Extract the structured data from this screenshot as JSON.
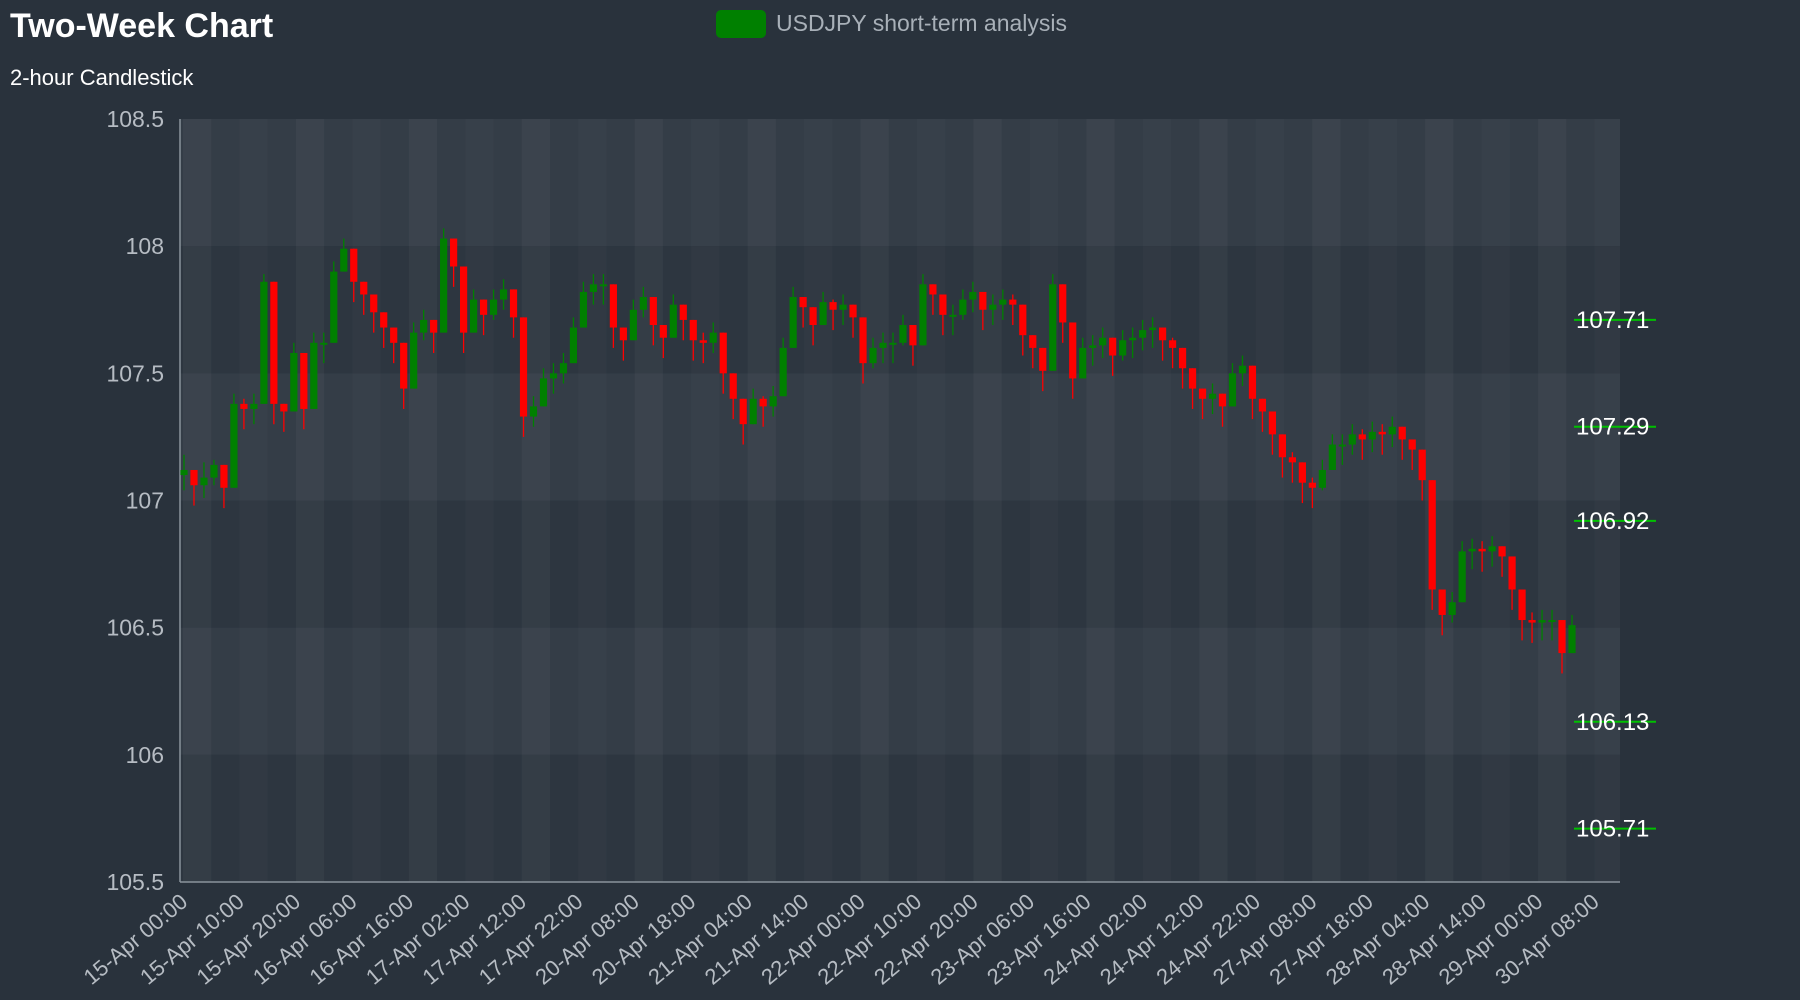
{
  "chart_data": {
    "type": "candlestick",
    "title": "Two-Week Chart",
    "subtitle": "2-hour Candlestick",
    "legend": {
      "label": "USDJPY short-term analysis",
      "color": "#008000",
      "placement": "top-center"
    },
    "colors": {
      "up": "#008000",
      "down": "#ff0000",
      "level_line": "#00c000",
      "background": "#29323c"
    },
    "ylim": [
      105.5,
      108.5
    ],
    "yticks": [
      "108.5",
      "108",
      "107.5",
      "107",
      "106.5",
      "106",
      "105.5"
    ],
    "xtick_labels": [
      "15-Apr 00:00",
      "15-Apr 10:00",
      "15-Apr 20:00",
      "16-Apr 06:00",
      "16-Apr 16:00",
      "17-Apr 02:00",
      "17-Apr 12:00",
      "17-Apr 22:00",
      "20-Apr 08:00",
      "20-Apr 18:00",
      "21-Apr 04:00",
      "21-Apr 14:00",
      "22-Apr 00:00",
      "22-Apr 10:00",
      "22-Apr 20:00",
      "23-Apr 06:00",
      "23-Apr 16:00",
      "24-Apr 02:00",
      "24-Apr 12:00",
      "24-Apr 22:00",
      "27-Apr 08:00",
      "27-Apr 18:00",
      "28-Apr 04:00",
      "28-Apr 14:00",
      "29-Apr 00:00",
      "30-Apr 08:00"
    ],
    "levels": [
      107.71,
      107.29,
      106.92,
      106.13,
      105.71
    ],
    "level_labels": [
      "107.71",
      "107.29",
      "106.92",
      "106.13",
      "105.71"
    ],
    "grid": true,
    "candle_close": [
      107.12,
      107.06,
      107.09,
      107.14,
      107.05,
      107.38,
      107.36,
      107.38,
      107.86,
      107.38,
      107.35,
      107.58,
      107.36,
      107.62,
      107.62,
      107.9,
      107.99,
      107.86,
      107.81,
      107.74,
      107.68,
      107.62,
      107.44,
      107.66,
      107.71,
      107.66,
      108.03,
      107.92,
      107.66,
      107.79,
      107.73,
      107.79,
      107.83,
      107.72,
      107.33,
      107.37,
      107.48,
      107.5,
      107.54,
      107.68,
      107.82,
      107.85,
      107.85,
      107.68,
      107.63,
      107.75,
      107.8,
      107.69,
      107.64,
      107.77,
      107.71,
      107.63,
      107.62,
      107.66,
      107.5,
      107.4,
      107.3,
      107.4,
      107.37,
      107.41,
      107.6,
      107.8,
      107.76,
      107.69,
      107.78,
      107.75,
      107.77,
      107.72,
      107.54,
      107.6,
      107.62,
      107.62,
      107.69,
      107.61,
      107.85,
      107.81,
      107.73,
      107.73,
      107.79,
      107.82,
      107.75,
      107.77,
      107.79,
      107.77,
      107.65,
      107.6,
      107.51,
      107.85,
      107.7,
      107.48,
      107.6,
      107.61,
      107.64,
      107.57,
      107.63,
      107.64,
      107.67,
      107.68,
      107.63,
      107.6,
      107.52,
      107.44,
      107.4,
      107.42,
      107.37,
      107.5,
      107.53,
      107.4,
      107.35,
      107.26,
      107.17,
      107.15,
      107.07,
      107.05,
      107.12,
      107.22,
      107.22,
      107.26,
      107.24,
      107.27,
      107.26,
      107.29,
      107.24,
      107.2,
      107.08,
      106.65,
      106.55,
      106.6,
      106.8,
      106.81,
      106.8,
      106.82,
      106.78,
      106.65,
      106.53,
      106.52,
      106.53,
      106.53,
      106.4,
      106.51
    ],
    "candle_high": [
      107.18,
      107.1,
      107.15,
      107.16,
      107.09,
      107.42,
      107.4,
      107.42,
      107.89,
      107.4,
      107.38,
      107.62,
      107.4,
      107.66,
      107.66,
      107.94,
      108.03,
      107.9,
      107.85,
      107.78,
      107.72,
      107.66,
      107.48,
      107.7,
      107.75,
      107.7,
      108.07,
      107.96,
      107.7,
      107.83,
      107.77,
      107.83,
      107.87,
      107.76,
      107.37,
      107.41,
      107.52,
      107.54,
      107.58,
      107.72,
      107.86,
      107.89,
      107.89,
      107.72,
      107.67,
      107.79,
      107.84,
      107.73,
      107.68,
      107.81,
      107.75,
      107.67,
      107.66,
      107.7,
      107.54,
      107.44,
      107.34,
      107.44,
      107.41,
      107.45,
      107.64,
      107.84,
      107.8,
      107.73,
      107.82,
      107.79,
      107.81,
      107.76,
      107.58,
      107.64,
      107.66,
      107.66,
      107.73,
      107.65,
      107.89,
      107.85,
      107.77,
      107.77,
      107.83,
      107.86,
      107.79,
      107.81,
      107.83,
      107.81,
      107.69,
      107.64,
      107.55,
      107.89,
      107.74,
      107.52,
      107.64,
      107.65,
      107.68,
      107.61,
      107.67,
      107.68,
      107.71,
      107.72,
      107.67,
      107.64,
      107.56,
      107.48,
      107.44,
      107.46,
      107.41,
      107.54,
      107.57,
      107.44,
      107.39,
      107.3,
      107.21,
      107.19,
      107.11,
      107.09,
      107.16,
      107.26,
      107.26,
      107.3,
      107.28,
      107.31,
      107.3,
      107.33,
      107.28,
      107.24,
      107.12,
      106.69,
      106.59,
      106.64,
      106.84,
      106.85,
      106.84,
      106.86,
      106.82,
      106.69,
      106.57,
      106.56,
      106.57,
      106.57,
      106.44,
      106.55
    ],
    "candle_low": [
      107.04,
      106.98,
      107.01,
      107.06,
      106.97,
      107.3,
      107.28,
      107.3,
      107.78,
      107.3,
      107.27,
      107.5,
      107.28,
      107.54,
      107.54,
      107.82,
      107.91,
      107.78,
      107.73,
      107.66,
      107.6,
      107.54,
      107.36,
      107.58,
      107.63,
      107.58,
      107.95,
      107.84,
      107.58,
      107.71,
      107.65,
      107.71,
      107.75,
      107.64,
      107.25,
      107.29,
      107.4,
      107.42,
      107.46,
      107.6,
      107.74,
      107.77,
      107.77,
      107.6,
      107.55,
      107.67,
      107.72,
      107.61,
      107.56,
      107.69,
      107.63,
      107.55,
      107.54,
      107.58,
      107.42,
      107.32,
      107.22,
      107.32,
      107.29,
      107.33,
      107.52,
      107.72,
      107.68,
      107.61,
      107.7,
      107.67,
      107.69,
      107.64,
      107.46,
      107.52,
      107.54,
      107.54,
      107.61,
      107.53,
      107.77,
      107.73,
      107.65,
      107.65,
      107.71,
      107.74,
      107.67,
      107.69,
      107.71,
      107.69,
      107.57,
      107.52,
      107.43,
      107.77,
      107.62,
      107.4,
      107.52,
      107.53,
      107.56,
      107.49,
      107.55,
      107.56,
      107.59,
      107.6,
      107.55,
      107.52,
      107.44,
      107.36,
      107.32,
      107.34,
      107.29,
      107.42,
      107.45,
      107.32,
      107.27,
      107.18,
      107.09,
      107.07,
      106.99,
      106.97,
      107.04,
      107.14,
      107.14,
      107.18,
      107.16,
      107.19,
      107.18,
      107.21,
      107.16,
      107.12,
      107.0,
      106.57,
      106.47,
      106.52,
      106.72,
      106.73,
      106.72,
      106.74,
      106.7,
      106.57,
      106.45,
      106.44,
      106.45,
      106.45,
      106.32,
      106.43
    ],
    "candle_open": [
      107.1,
      107.12,
      107.06,
      107.09,
      107.14,
      107.05,
      107.38,
      107.36,
      107.38,
      107.86,
      107.38,
      107.35,
      107.58,
      107.36,
      107.62,
      107.62,
      107.9,
      107.99,
      107.86,
      107.81,
      107.74,
      107.68,
      107.62,
      107.44,
      107.66,
      107.71,
      107.66,
      108.03,
      107.92,
      107.66,
      107.79,
      107.73,
      107.79,
      107.83,
      107.72,
      107.33,
      107.37,
      107.48,
      107.5,
      107.54,
      107.68,
      107.82,
      107.85,
      107.85,
      107.68,
      107.63,
      107.75,
      107.8,
      107.69,
      107.64,
      107.77,
      107.71,
      107.63,
      107.62,
      107.66,
      107.5,
      107.4,
      107.3,
      107.4,
      107.37,
      107.41,
      107.6,
      107.8,
      107.76,
      107.69,
      107.78,
      107.75,
      107.77,
      107.72,
      107.54,
      107.6,
      107.62,
      107.62,
      107.69,
      107.61,
      107.85,
      107.81,
      107.73,
      107.73,
      107.79,
      107.82,
      107.75,
      107.77,
      107.79,
      107.77,
      107.65,
      107.6,
      107.51,
      107.85,
      107.7,
      107.48,
      107.6,
      107.61,
      107.64,
      107.57,
      107.63,
      107.64,
      107.67,
      107.68,
      107.63,
      107.6,
      107.52,
      107.44,
      107.4,
      107.42,
      107.37,
      107.5,
      107.53,
      107.4,
      107.35,
      107.26,
      107.17,
      107.15,
      107.07,
      107.05,
      107.12,
      107.22,
      107.22,
      107.26,
      107.24,
      107.27,
      107.26,
      107.29,
      107.24,
      107.2,
      107.08,
      106.65,
      106.55,
      106.6,
      106.8,
      106.81,
      106.8,
      106.82,
      106.78,
      106.65,
      106.53,
      106.52,
      106.53,
      106.53,
      106.4
    ]
  }
}
